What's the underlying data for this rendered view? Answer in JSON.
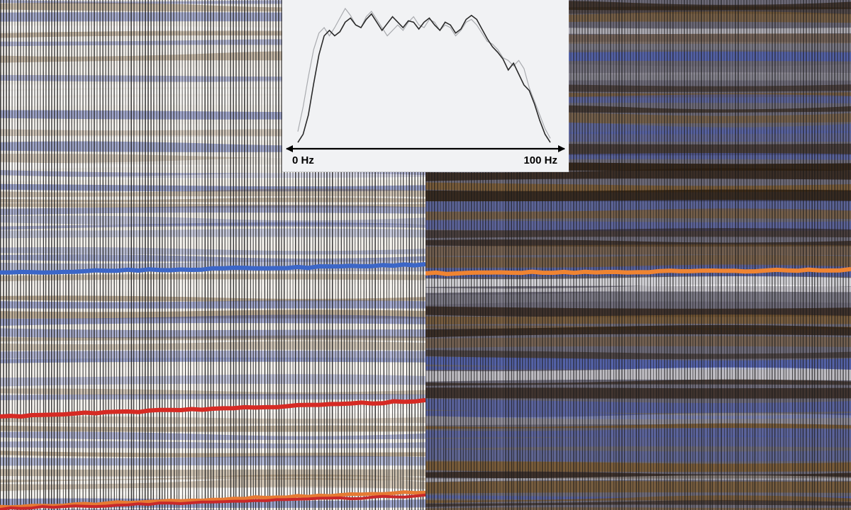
{
  "spectrum": {
    "axis_start_label": "0 Hz",
    "axis_end_label": "100 Hz",
    "curve_dark": [
      0.02,
      0.08,
      0.22,
      0.45,
      0.66,
      0.8,
      0.84,
      0.8,
      0.83,
      0.9,
      0.93,
      0.88,
      0.86,
      0.92,
      0.96,
      0.9,
      0.84,
      0.89,
      0.94,
      0.9,
      0.86,
      0.91,
      0.9,
      0.85,
      0.9,
      0.93,
      0.88,
      0.84,
      0.9,
      0.88,
      0.82,
      0.85,
      0.92,
      0.95,
      0.92,
      0.85,
      0.78,
      0.72,
      0.68,
      0.63,
      0.55,
      0.6,
      0.52,
      0.44,
      0.4,
      0.3,
      0.18,
      0.08,
      0.02
    ],
    "curve_light": [
      0.1,
      0.28,
      0.5,
      0.7,
      0.82,
      0.86,
      0.8,
      0.86,
      0.93,
      1.0,
      0.95,
      0.88,
      0.86,
      0.94,
      0.98,
      0.92,
      0.86,
      0.8,
      0.84,
      0.88,
      0.84,
      0.9,
      0.94,
      0.88,
      0.86,
      0.92,
      0.9,
      0.84,
      0.88,
      0.86,
      0.8,
      0.84,
      0.9,
      0.92,
      0.88,
      0.82,
      0.76,
      0.74,
      0.7,
      0.64,
      0.62,
      0.58,
      0.62,
      0.56,
      0.42,
      0.32,
      0.22,
      0.12,
      0.05
    ]
  },
  "horizons": {
    "left": [
      {
        "color": "#3b66c8",
        "y0": 385,
        "y1": 374,
        "width": 6
      },
      {
        "color": "#d62a23",
        "y0": 588,
        "y1": 566,
        "width": 6
      },
      {
        "color": "#e67a33",
        "y0": 716,
        "y1": 694,
        "width": 5
      },
      {
        "color": "#c8282a",
        "y0": 718,
        "y1": 700,
        "width": 4
      }
    ],
    "right": [
      {
        "color": "#ef8432",
        "y0": 386,
        "y1": 381,
        "width": 6
      }
    ]
  },
  "palette": {
    "blue": "#5060b0",
    "brown": "#7a5a32",
    "dark_brown": "#2e1e10",
    "trace": "#1a1a1a"
  }
}
